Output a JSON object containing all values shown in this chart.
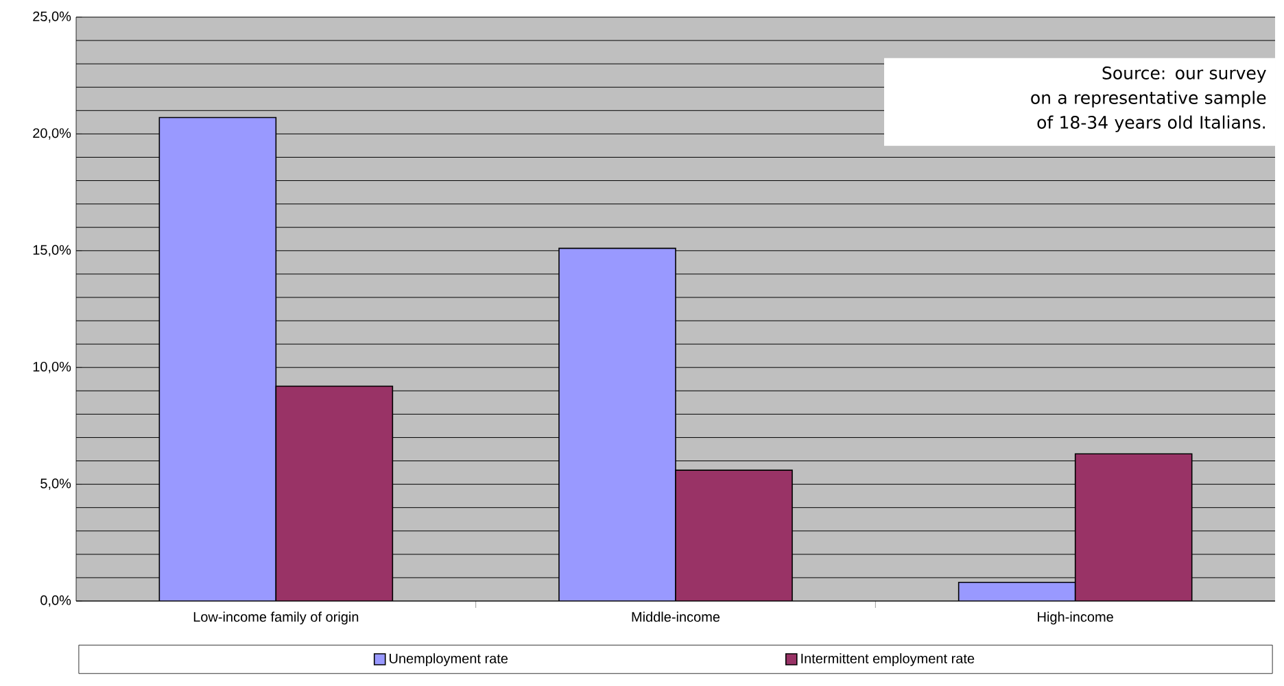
{
  "chart_data": {
    "type": "bar",
    "categories": [
      "Low-income family of origin",
      "Middle-income",
      "High-income"
    ],
    "series": [
      {
        "name": "Unemployment rate",
        "color": "#9999ff",
        "values": [
          20.7,
          15.1,
          0.8
        ]
      },
      {
        "name": "Intermittent employment rate",
        "color": "#993366",
        "values": [
          9.2,
          5.6,
          6.3
        ]
      }
    ],
    "ylim": [
      0,
      25
    ],
    "yticks": [
      {
        "value": 0,
        "label": "0,0%"
      },
      {
        "value": 5,
        "label": "5,0%"
      },
      {
        "value": 10,
        "label": "10,0%"
      },
      {
        "value": 15,
        "label": "15,0%"
      },
      {
        "value": 20,
        "label": "20,0%"
      },
      {
        "value": 25,
        "label": "25,0%"
      }
    ],
    "grid": "y",
    "legend": "bottom",
    "annotations": [
      "Source: our  survey",
      "on a representative sample",
      "of 18-34 years old Italians."
    ]
  }
}
